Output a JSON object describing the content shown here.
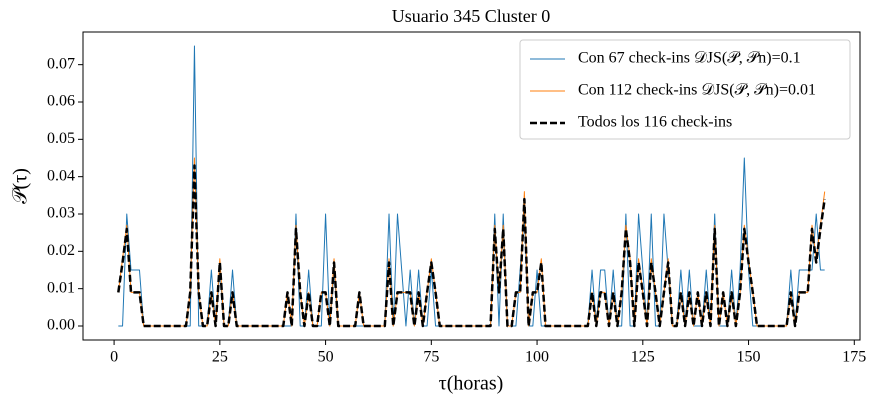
{
  "chart_data": {
    "type": "line",
    "title": "Usuario 345 Cluster 0",
    "x_label": "τ(horas)",
    "y_label": "𝒫(τ)",
    "x": [
      1,
      2,
      3,
      4,
      5,
      6,
      7,
      8,
      9,
      10,
      11,
      12,
      13,
      14,
      15,
      16,
      17,
      18,
      19,
      20,
      21,
      22,
      23,
      24,
      25,
      26,
      27,
      28,
      29,
      30,
      31,
      32,
      33,
      34,
      35,
      36,
      37,
      38,
      39,
      40,
      41,
      42,
      43,
      44,
      45,
      46,
      47,
      48,
      49,
      50,
      51,
      52,
      53,
      54,
      55,
      56,
      57,
      58,
      59,
      60,
      61,
      62,
      63,
      64,
      65,
      66,
      67,
      68,
      69,
      70,
      71,
      72,
      73,
      74,
      75,
      76,
      77,
      78,
      79,
      80,
      81,
      82,
      83,
      84,
      85,
      86,
      87,
      88,
      89,
      90,
      91,
      92,
      93,
      94,
      95,
      96,
      97,
      98,
      99,
      100,
      101,
      102,
      103,
      104,
      105,
      106,
      107,
      108,
      109,
      110,
      111,
      112,
      113,
      114,
      115,
      116,
      117,
      118,
      119,
      120,
      121,
      122,
      123,
      124,
      125,
      126,
      127,
      128,
      129,
      130,
      131,
      132,
      133,
      134,
      135,
      136,
      137,
      138,
      139,
      140,
      141,
      142,
      143,
      144,
      145,
      146,
      147,
      148,
      149,
      150,
      151,
      152,
      153,
      154,
      155,
      156,
      157,
      158,
      159,
      160,
      161,
      162,
      163,
      164,
      165,
      166,
      167,
      168
    ],
    "series": [
      {
        "name": "Con 67 check-ins 𝒟JS(𝒫, 𝒫n)=0.1",
        "color": "#1f77b4",
        "style": "solid",
        "values": [
          0,
          0,
          0.03,
          0.015,
          0.015,
          0.015,
          0,
          0,
          0,
          0,
          0,
          0,
          0,
          0,
          0,
          0,
          0,
          0,
          0.075,
          0,
          0,
          0,
          0.015,
          0,
          0.015,
          0,
          0,
          0.015,
          0,
          0,
          0,
          0,
          0,
          0,
          0,
          0,
          0,
          0,
          0,
          0,
          0,
          0,
          0.03,
          0,
          0,
          0.015,
          0,
          0,
          0,
          0.03,
          0,
          0.015,
          0,
          0,
          0,
          0,
          0,
          0,
          0,
          0,
          0,
          0,
          0,
          0,
          0.03,
          0,
          0.03,
          0.015,
          0,
          0.015,
          0,
          0.015,
          0,
          0,
          0.015,
          0,
          0,
          0,
          0,
          0,
          0,
          0,
          0,
          0,
          0,
          0,
          0,
          0,
          0,
          0.03,
          0,
          0.03,
          0,
          0,
          0,
          0.015,
          0.03,
          0,
          0,
          0.015,
          0,
          0,
          0,
          0,
          0,
          0,
          0,
          0,
          0,
          0,
          0,
          0,
          0.015,
          0,
          0.015,
          0.015,
          0,
          0.015,
          0,
          0,
          0.03,
          0,
          0,
          0.03,
          0.015,
          0,
          0.03,
          0,
          0,
          0.03,
          0.015,
          0,
          0,
          0.015,
          0,
          0.015,
          0,
          0,
          0,
          0.015,
          0,
          0.03,
          0,
          0,
          0,
          0.015,
          0,
          0.015,
          0.045,
          0.015,
          0,
          0,
          0,
          0,
          0,
          0,
          0,
          0,
          0,
          0.015,
          0,
          0.015,
          0.015,
          0.015,
          0.015,
          0.03,
          0.015,
          0.015
        ]
      },
      {
        "name": "Con 112 check-ins 𝒟JS(𝒫, 𝒫n)=0.01",
        "color": "#ff7f0e",
        "style": "solid",
        "values": [
          0.009,
          0.018,
          0.027,
          0.009,
          0.009,
          0.009,
          0,
          0,
          0,
          0,
          0,
          0,
          0,
          0,
          0,
          0,
          0,
          0.009,
          0.045,
          0.009,
          0,
          0,
          0.009,
          0,
          0.018,
          0,
          0,
          0.009,
          0,
          0,
          0,
          0,
          0,
          0,
          0,
          0,
          0,
          0,
          0,
          0,
          0.009,
          0,
          0.027,
          0.009,
          0,
          0.009,
          0,
          0,
          0.009,
          0.009,
          0,
          0.018,
          0,
          0,
          0,
          0,
          0,
          0.009,
          0,
          0,
          0,
          0,
          0,
          0,
          0.018,
          0,
          0.009,
          0.009,
          0.009,
          0.009,
          0,
          0.009,
          0,
          0.009,
          0.018,
          0.009,
          0,
          0,
          0,
          0,
          0,
          0,
          0,
          0,
          0,
          0,
          0,
          0,
          0,
          0.027,
          0.009,
          0.027,
          0,
          0,
          0.009,
          0.009,
          0.036,
          0,
          0.009,
          0.009,
          0.018,
          0,
          0,
          0,
          0,
          0,
          0,
          0,
          0,
          0,
          0,
          0,
          0.009,
          0,
          0.009,
          0.009,
          0,
          0.009,
          0,
          0.009,
          0.027,
          0.018,
          0,
          0.018,
          0.009,
          0,
          0.018,
          0.009,
          0,
          0.009,
          0.018,
          0,
          0,
          0.009,
          0,
          0.009,
          0,
          0.009,
          0,
          0.009,
          0,
          0.027,
          0,
          0.009,
          0,
          0.009,
          0,
          0.009,
          0.027,
          0.018,
          0.009,
          0,
          0,
          0,
          0,
          0,
          0,
          0,
          0,
          0.009,
          0,
          0.009,
          0.009,
          0.009,
          0.027,
          0.018,
          0.027,
          0.036
        ]
      },
      {
        "name": "Todos los 116 check-ins",
        "color": "#000000",
        "style": "dashed",
        "values": [
          0.009,
          0.017,
          0.026,
          0.009,
          0.009,
          0.009,
          0,
          0,
          0,
          0,
          0,
          0,
          0,
          0,
          0,
          0,
          0,
          0.009,
          0.043,
          0.009,
          0,
          0,
          0.009,
          0,
          0.017,
          0,
          0,
          0.009,
          0,
          0,
          0,
          0,
          0,
          0,
          0,
          0,
          0,
          0,
          0,
          0,
          0.009,
          0,
          0.026,
          0.009,
          0,
          0.009,
          0,
          0,
          0.009,
          0.009,
          0,
          0.017,
          0,
          0,
          0,
          0,
          0,
          0.009,
          0,
          0,
          0,
          0,
          0,
          0,
          0.017,
          0,
          0.009,
          0.009,
          0.009,
          0.009,
          0,
          0.009,
          0,
          0.009,
          0.017,
          0.009,
          0,
          0,
          0,
          0,
          0,
          0,
          0,
          0,
          0,
          0,
          0,
          0,
          0,
          0.026,
          0.009,
          0.026,
          0,
          0,
          0.009,
          0.009,
          0.034,
          0,
          0.009,
          0.009,
          0.017,
          0,
          0,
          0,
          0,
          0,
          0,
          0,
          0,
          0,
          0,
          0,
          0.009,
          0,
          0.009,
          0.009,
          0,
          0.009,
          0,
          0.009,
          0.026,
          0.017,
          0,
          0.017,
          0.009,
          0,
          0.017,
          0.009,
          0,
          0.009,
          0.017,
          0,
          0,
          0.009,
          0,
          0.009,
          0,
          0.009,
          0,
          0.009,
          0,
          0.026,
          0,
          0.009,
          0,
          0.009,
          0,
          0.009,
          0.026,
          0.017,
          0.009,
          0,
          0,
          0,
          0,
          0,
          0,
          0,
          0,
          0.009,
          0,
          0.009,
          0.009,
          0.009,
          0.026,
          0.017,
          0.026,
          0.034
        ]
      }
    ],
    "xlim": [
      -7.35,
      176.35
    ],
    "xticks": [
      0,
      25,
      50,
      75,
      100,
      125,
      150,
      175
    ],
    "ylim": [
      -0.00375,
      0.07875
    ],
    "yticks": [
      {
        "value": 0,
        "label": "0.00"
      },
      0.01,
      0.02,
      0.03,
      0.04,
      0.05,
      0.06,
      0.07
    ],
    "legend": "upper right",
    "grid": false
  }
}
